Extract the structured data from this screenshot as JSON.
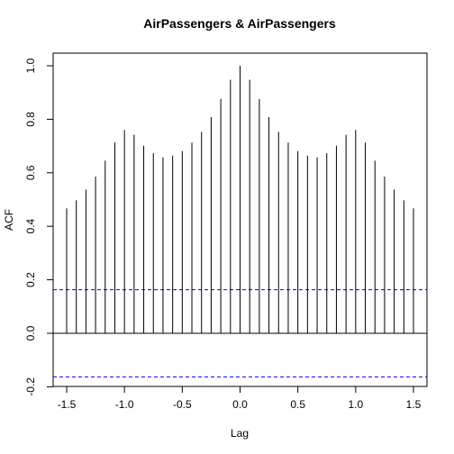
{
  "chart_data": {
    "type": "bar",
    "title": "AirPassengers & AirPassengers",
    "xlabel": "Lag",
    "ylabel": "ACF",
    "xlim": [
      -1.58,
      1.58
    ],
    "ylim": [
      -0.2,
      1.0
    ],
    "xticks": [
      -1.5,
      -1.0,
      -0.5,
      0.0,
      0.5,
      1.0,
      1.5
    ],
    "xtick_labels": [
      "-1.5",
      "-1.0",
      "-0.5",
      "0.0",
      "0.5",
      "1.0",
      "1.5"
    ],
    "yticks": [
      -0.2,
      0.0,
      0.2,
      0.4,
      0.6,
      0.8,
      1.0
    ],
    "ytick_labels": [
      "-0.2",
      "0.0",
      "0.2",
      "0.4",
      "0.6",
      "0.8",
      "1.0"
    ],
    "confidence_bound": 0.163,
    "confidence_color": "#0000ff",
    "lags": [
      -1.5,
      -1.4167,
      -1.3333,
      -1.25,
      -1.1667,
      -1.0833,
      -1.0,
      -0.9167,
      -0.8333,
      -0.75,
      -0.6667,
      -0.5833,
      -0.5,
      -0.4167,
      -0.3333,
      -0.25,
      -0.1667,
      -0.0833,
      0.0,
      0.0833,
      0.1667,
      0.25,
      0.3333,
      0.4167,
      0.5,
      0.5833,
      0.6667,
      0.75,
      0.8333,
      0.9167,
      1.0,
      1.0833,
      1.1667,
      1.25,
      1.3333,
      1.4167,
      1.5
    ],
    "values": [
      0.467,
      0.497,
      0.537,
      0.586,
      0.645,
      0.713,
      0.76,
      0.742,
      0.701,
      0.673,
      0.658,
      0.664,
      0.681,
      0.713,
      0.753,
      0.808,
      0.876,
      0.948,
      1.0,
      0.948,
      0.876,
      0.808,
      0.753,
      0.713,
      0.681,
      0.664,
      0.658,
      0.673,
      0.701,
      0.742,
      0.76,
      0.713,
      0.645,
      0.586,
      0.537,
      0.497,
      0.467
    ]
  }
}
